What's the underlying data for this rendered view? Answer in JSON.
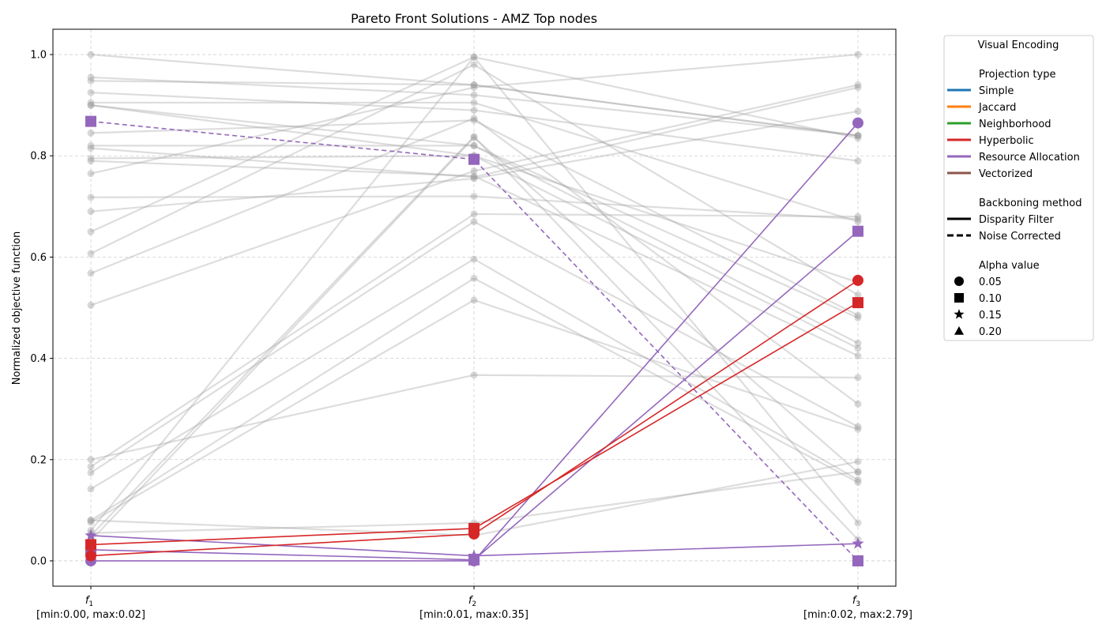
{
  "chart_data": {
    "type": "line",
    "subtype": "parallel-coordinates",
    "title": "Pareto Front Solutions - AMZ Top nodes",
    "ylabel": "Normalized objective function",
    "ylim": [
      -0.05,
      1.05
    ],
    "yticks": [
      "0.0",
      "0.2",
      "0.4",
      "0.6",
      "0.8",
      "1.0"
    ],
    "ytick_values": [
      0,
      0.2,
      0.4,
      0.6,
      0.8,
      1.0
    ],
    "grid": true,
    "legend_position": "outside-right",
    "axes": [
      {
        "name": "f1",
        "label_main": "f",
        "label_sub": "1",
        "range_label": "[min:0.00, max:0.02]"
      },
      {
        "name": "f2",
        "label_main": "f",
        "label_sub": "2",
        "range_label": "[min:0.01, max:0.35]"
      },
      {
        "name": "f3",
        "label_main": "f",
        "label_sub": "3",
        "range_label": "[min:0.02, max:2.79]"
      }
    ],
    "dominated_color": "#9e9e9e",
    "dominated_solutions": [
      [
        1.0,
        0.94,
        0.84
      ],
      [
        0.955,
        0.92,
        0.84
      ],
      [
        0.948,
        0.94,
        0.84
      ],
      [
        0.925,
        0.89,
        0.79
      ],
      [
        0.905,
        0.905,
        0.67
      ],
      [
        0.9,
        0.82,
        0.48
      ],
      [
        0.82,
        0.82,
        0.43
      ],
      [
        0.795,
        0.8,
        0.42
      ],
      [
        0.79,
        0.76,
        0.405
      ],
      [
        0.765,
        0.935,
        1.0
      ],
      [
        0.718,
        0.72,
        0.675
      ],
      [
        0.69,
        0.755,
        0.888
      ],
      [
        0.65,
        0.995,
        0.835
      ],
      [
        0.607,
        0.98,
        0.525
      ],
      [
        0.568,
        0.874,
        0.31
      ],
      [
        0.505,
        0.77,
        0.94
      ],
      [
        0.2,
        0.367,
        0.362
      ],
      [
        0.186,
        0.685,
        0.68
      ],
      [
        0.174,
        0.67,
        0.265
      ],
      [
        0.142,
        0.596,
        0.16
      ],
      [
        0.08,
        0.558,
        0.155
      ],
      [
        0.076,
        0.515,
        0.26
      ],
      [
        0.06,
        0.995,
        0.075
      ],
      [
        0.05,
        0.838,
        0.042
      ],
      [
        0.04,
        0.836,
        0.175
      ],
      [
        0.08,
        0.05,
        0.196
      ],
      [
        0.055,
        0.075,
        0.176
      ],
      [
        0.845,
        0.87,
        0.485
      ],
      [
        0.815,
        0.758,
        0.935
      ],
      [
        0.9,
        0.8,
        0.55
      ]
    ],
    "legend": {
      "title": "Visual Encoding",
      "projection_header": "Projection type",
      "projection_types": [
        {
          "name": "Simple",
          "color": "#1f77b4"
        },
        {
          "name": "Jaccard",
          "color": "#ff7f0e"
        },
        {
          "name": "Neighborhood",
          "color": "#2ca02c"
        },
        {
          "name": "Hyperbolic",
          "color": "#d62728"
        },
        {
          "name": "Resource Allocation",
          "color": "#9467bd"
        },
        {
          "name": "Vectorized",
          "color": "#8c564b"
        }
      ],
      "backbone_header": "Backboning method",
      "backbone_methods": [
        {
          "name": "Disparity Filter",
          "dash": "solid"
        },
        {
          "name": "Noise Corrected",
          "dash": "dashed"
        }
      ],
      "alpha_header": "Alpha value",
      "alpha_values": [
        {
          "name": "0.05",
          "marker": "circle"
        },
        {
          "name": "0.10",
          "marker": "square"
        },
        {
          "name": "0.15",
          "marker": "star"
        },
        {
          "name": "0.20",
          "marker": "triangle"
        }
      ]
    },
    "pareto_solutions": [
      {
        "projection": "Resource Allocation",
        "backbone": "Noise Corrected",
        "alpha": "0.10",
        "values": [
          0.868,
          0.793,
          0.0
        ]
      },
      {
        "projection": "Resource Allocation",
        "backbone": "Disparity Filter",
        "alpha": "0.05",
        "values": [
          0.0,
          0.0,
          0.865
        ]
      },
      {
        "projection": "Resource Allocation",
        "backbone": "Disparity Filter",
        "alpha": "0.10",
        "values": [
          0.022,
          0.002,
          0.651
        ]
      },
      {
        "projection": "Resource Allocation",
        "backbone": "Disparity Filter",
        "alpha": "0.15",
        "values": [
          0.05,
          0.01,
          0.034
        ]
      },
      {
        "projection": "Hyperbolic",
        "backbone": "Disparity Filter",
        "alpha": "0.05",
        "values": [
          0.01,
          0.053,
          0.554
        ]
      },
      {
        "projection": "Hyperbolic",
        "backbone": "Disparity Filter",
        "alpha": "0.10",
        "values": [
          0.032,
          0.064,
          0.51
        ]
      }
    ]
  }
}
